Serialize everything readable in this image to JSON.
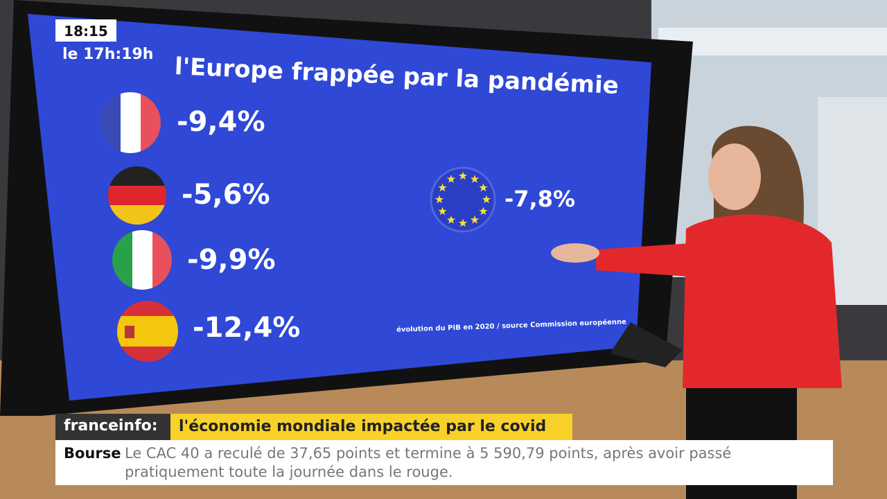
{
  "clock": {
    "time": "18:15",
    "program": "le 17h:19h"
  },
  "screen": {
    "title": "l'Europe frappée par la pandémie",
    "countries": [
      {
        "value": "-9,4%"
      },
      {
        "value": "-5,6%"
      },
      {
        "value": "-9,9%"
      },
      {
        "value": "-12,4%"
      }
    ],
    "eu": {
      "value": "-7,8%"
    },
    "source": "évolution du PIB en 2020 / source Commission européenne"
  },
  "banner": {
    "brand": "franceinfo:",
    "headline": "l'économie mondiale impactée par le covid"
  },
  "ticker": {
    "label": "Bourse",
    "text": "Le CAC 40 a reculé de 37,65 points et termine à 5 590,79 points, après avoir passé pratiquement toute la journée dans le rouge."
  }
}
